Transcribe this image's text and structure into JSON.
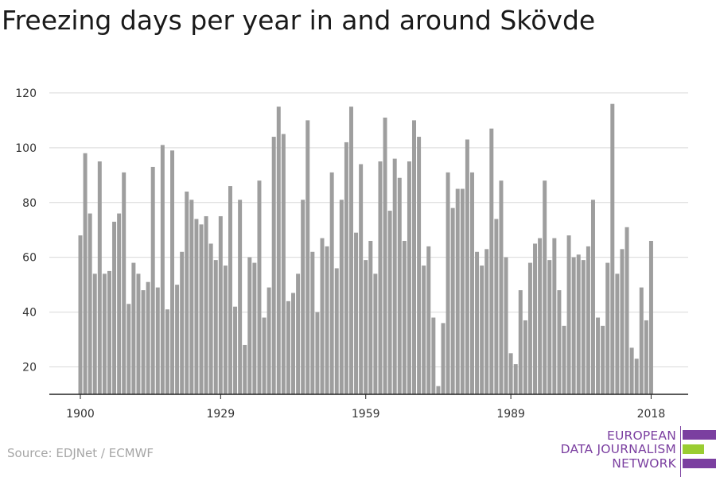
{
  "title": "Freezing days per year in and around Skövde",
  "source": "Source: EDJNet / ECMWF",
  "logo": {
    "lines": [
      "EUROPEAN",
      "DATA JOURNALISM",
      "NETWORK"
    ],
    "text_color": "#7b3fa0",
    "bar_colors": [
      "#7b3fa0",
      "#9acd32",
      "#7b3fa0"
    ]
  },
  "chart_data": {
    "type": "bar",
    "title": "Freezing days per year in and around Skövde",
    "xlabel": "",
    "ylabel": "",
    "x_start": 1900,
    "x_end": 2018,
    "x_ticks": [
      1900,
      1929,
      1959,
      1989,
      2018
    ],
    "y_ticks": [
      20,
      40,
      60,
      80,
      100,
      120
    ],
    "ylim": [
      10,
      122
    ],
    "grid": true,
    "bar_color": "#9e9e9e",
    "values": [
      68,
      98,
      76,
      54,
      95,
      54,
      55,
      73,
      76,
      91,
      43,
      58,
      54,
      48,
      51,
      93,
      49,
      101,
      41,
      99,
      50,
      62,
      84,
      81,
      74,
      72,
      75,
      65,
      59,
      75,
      57,
      86,
      42,
      81,
      28,
      60,
      58,
      88,
      38,
      49,
      104,
      115,
      105,
      44,
      47,
      54,
      81,
      110,
      62,
      40,
      67,
      64,
      91,
      56,
      81,
      102,
      115,
      69,
      94,
      59,
      66,
      54,
      95,
      111,
      77,
      96,
      89,
      66,
      95,
      110,
      104,
      57,
      64,
      38,
      13,
      36,
      91,
      78,
      85,
      85,
      103,
      91,
      62,
      57,
      63,
      107,
      74,
      88,
      60,
      25,
      21,
      48,
      37,
      58,
      65,
      67,
      88,
      59,
      67,
      48,
      35,
      68,
      60,
      61,
      59,
      64,
      81,
      38,
      35,
      58,
      116,
      54,
      63,
      71,
      27,
      23,
      49,
      37,
      66
    ]
  }
}
